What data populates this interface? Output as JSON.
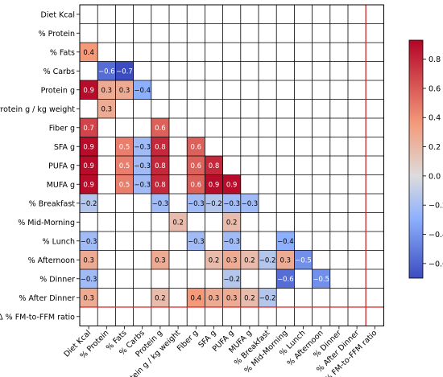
{
  "chart_data": {
    "type": "heatmap",
    "title": "",
    "xlabel": "",
    "ylabel": "",
    "layout": "lower-triangle",
    "variables": [
      "Diet Kcal",
      "% Protein",
      "% Fats",
      "% Carbs",
      "Protein g",
      "Protein g / kg weight",
      "Fiber g",
      "SFA g",
      "PUFA g",
      "MUFA g",
      "% Breakfast",
      "% Mid-Morning",
      "% Lunch",
      "% Afternoon",
      "% Dinner",
      "% After Dinner",
      "Δ % FM-to-FFM ratio"
    ],
    "cells": [
      {
        "row": 2,
        "col": 0,
        "value": 0.4
      },
      {
        "row": 3,
        "col": 1,
        "value": -0.6
      },
      {
        "row": 3,
        "col": 2,
        "value": -0.7
      },
      {
        "row": 4,
        "col": 0,
        "value": 0.9
      },
      {
        "row": 4,
        "col": 1,
        "value": 0.3
      },
      {
        "row": 4,
        "col": 2,
        "value": 0.3
      },
      {
        "row": 4,
        "col": 3,
        "value": -0.4
      },
      {
        "row": 5,
        "col": 1,
        "value": 0.3
      },
      {
        "row": 6,
        "col": 0,
        "value": 0.7
      },
      {
        "row": 6,
        "col": 4,
        "value": 0.6
      },
      {
        "row": 7,
        "col": 0,
        "value": 0.9
      },
      {
        "row": 7,
        "col": 2,
        "value": 0.5
      },
      {
        "row": 7,
        "col": 3,
        "value": -0.3
      },
      {
        "row": 7,
        "col": 4,
        "value": 0.8
      },
      {
        "row": 7,
        "col": 6,
        "value": 0.6
      },
      {
        "row": 8,
        "col": 0,
        "value": 0.9
      },
      {
        "row": 8,
        "col": 2,
        "value": 0.5
      },
      {
        "row": 8,
        "col": 3,
        "value": -0.3
      },
      {
        "row": 8,
        "col": 4,
        "value": 0.8
      },
      {
        "row": 8,
        "col": 6,
        "value": 0.6
      },
      {
        "row": 8,
        "col": 7,
        "value": 0.8
      },
      {
        "row": 9,
        "col": 0,
        "value": 0.9
      },
      {
        "row": 9,
        "col": 2,
        "value": 0.5
      },
      {
        "row": 9,
        "col": 3,
        "value": -0.3
      },
      {
        "row": 9,
        "col": 4,
        "value": 0.8
      },
      {
        "row": 9,
        "col": 6,
        "value": 0.6
      },
      {
        "row": 9,
        "col": 7,
        "value": 0.9
      },
      {
        "row": 9,
        "col": 8,
        "value": 0.9
      },
      {
        "row": 10,
        "col": 0,
        "value": -0.2
      },
      {
        "row": 10,
        "col": 4,
        "value": -0.3
      },
      {
        "row": 10,
        "col": 6,
        "value": -0.3
      },
      {
        "row": 10,
        "col": 7,
        "value": -0.2
      },
      {
        "row": 10,
        "col": 8,
        "value": -0.3
      },
      {
        "row": 10,
        "col": 9,
        "value": -0.3
      },
      {
        "row": 11,
        "col": 5,
        "value": 0.2
      },
      {
        "row": 11,
        "col": 8,
        "value": 0.2
      },
      {
        "row": 12,
        "col": 0,
        "value": -0.3
      },
      {
        "row": 12,
        "col": 6,
        "value": -0.3
      },
      {
        "row": 12,
        "col": 8,
        "value": -0.3
      },
      {
        "row": 12,
        "col": 11,
        "value": -0.4
      },
      {
        "row": 13,
        "col": 0,
        "value": 0.3
      },
      {
        "row": 13,
        "col": 4,
        "value": 0.3
      },
      {
        "row": 13,
        "col": 7,
        "value": 0.2
      },
      {
        "row": 13,
        "col": 8,
        "value": 0.3
      },
      {
        "row": 13,
        "col": 9,
        "value": 0.2
      },
      {
        "row": 13,
        "col": 10,
        "value": -0.2
      },
      {
        "row": 13,
        "col": 11,
        "value": 0.3
      },
      {
        "row": 13,
        "col": 12,
        "value": -0.5
      },
      {
        "row": 14,
        "col": 0,
        "value": -0.3
      },
      {
        "row": 14,
        "col": 8,
        "value": -0.2
      },
      {
        "row": 14,
        "col": 11,
        "value": -0.6
      },
      {
        "row": 14,
        "col": 13,
        "value": -0.5
      },
      {
        "row": 15,
        "col": 0,
        "value": 0.3
      },
      {
        "row": 15,
        "col": 4,
        "value": 0.2
      },
      {
        "row": 15,
        "col": 6,
        "value": 0.4
      },
      {
        "row": 15,
        "col": 7,
        "value": 0.3
      },
      {
        "row": 15,
        "col": 8,
        "value": 0.3
      },
      {
        "row": 15,
        "col": 9,
        "value": 0.2
      },
      {
        "row": 15,
        "col": 10,
        "value": -0.2
      }
    ],
    "colorbar": {
      "range": [
        -0.7,
        0.93
      ],
      "ticks": [
        "0.8",
        "0.6",
        "0.4",
        "0.2",
        "0.0",
        "−0.2",
        "−0.4",
        "−0.6"
      ],
      "tick_values": [
        0.8,
        0.6,
        0.4,
        0.2,
        0.0,
        -0.2,
        -0.4,
        -0.6
      ],
      "colormap": "coolwarm"
    },
    "grid": true
  },
  "colors": {
    "grid_line": "#000000",
    "highlight_line": "#d62728",
    "background": "#ffffff"
  }
}
